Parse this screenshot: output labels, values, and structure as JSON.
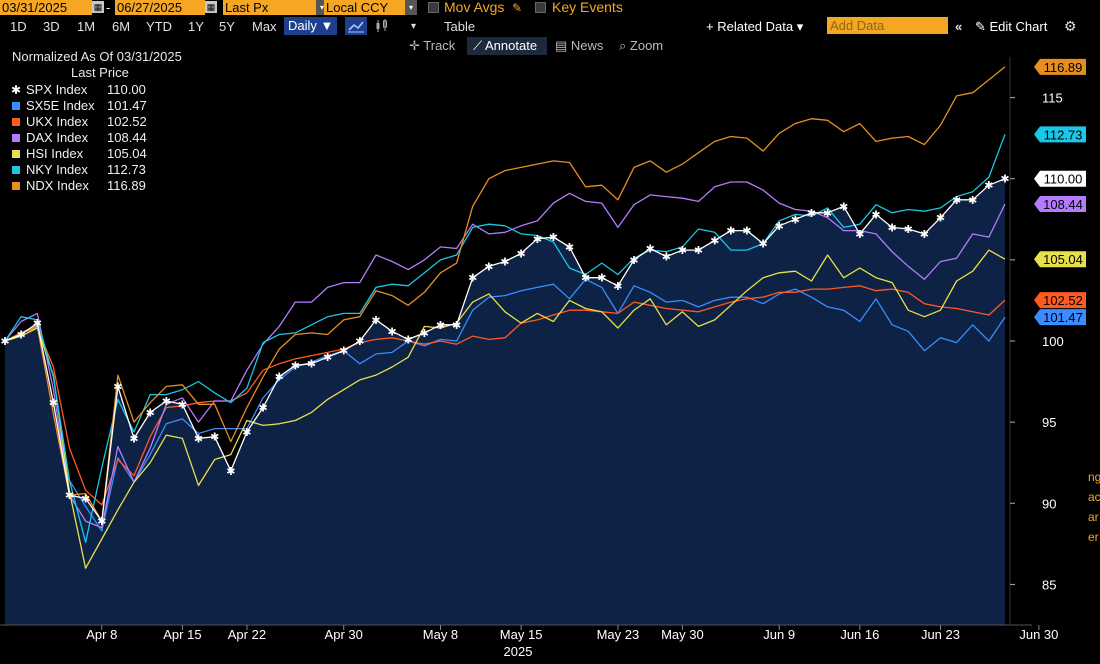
{
  "topbar": {
    "start_date": "03/31/2025",
    "end_date": "06/27/2025",
    "field": "Last Px",
    "currency": "Local CCY",
    "mov_avgs": "Mov Avgs",
    "key_events": "Key Events",
    "dash": "-"
  },
  "range_buttons": [
    "1D",
    "3D",
    "1M",
    "6M",
    "YTD",
    "1Y",
    "5Y",
    "Max"
  ],
  "frequency": "Daily",
  "table_label": "Table",
  "related_data": "Related Data",
  "add_data_placeholder": "Add Data",
  "edit_chart": "Edit Chart",
  "tools": {
    "track": "Track",
    "annotate": "Annotate",
    "news": "News",
    "zoom": "Zoom"
  },
  "legend": {
    "title": "Normalized As Of 03/31/2025",
    "subtitle": "Last Price"
  },
  "chart_data": {
    "type": "line",
    "title": "Normalized As Of 03/31/2025",
    "ylabel": "",
    "xlabel": "2025",
    "ylim": [
      82.5,
      117.5
    ],
    "yticks": [
      85,
      90,
      95,
      100,
      105,
      110,
      115
    ],
    "x_ticks": [
      "Apr 8",
      "Apr 15",
      "Apr 22",
      "Apr 30",
      "May 8",
      "May 15",
      "May 23",
      "May 30",
      "Jun 9",
      "Jun 16",
      "Jun 23",
      "Jun 30"
    ],
    "x_year": "2025",
    "x": [
      "03/31",
      "04/01",
      "04/02",
      "04/03",
      "04/04",
      "04/07",
      "04/08",
      "04/09",
      "04/10",
      "04/11",
      "04/14",
      "04/15",
      "04/16",
      "04/17",
      "04/21",
      "04/22",
      "04/23",
      "04/24",
      "04/25",
      "04/28",
      "04/29",
      "04/30",
      "05/01",
      "05/02",
      "05/05",
      "05/06",
      "05/07",
      "05/08",
      "05/09",
      "05/12",
      "05/13",
      "05/14",
      "05/15",
      "05/16",
      "05/19",
      "05/20",
      "05/21",
      "05/22",
      "05/23",
      "05/27",
      "05/28",
      "05/29",
      "05/30",
      "06/02",
      "06/03",
      "06/04",
      "06/05",
      "06/06",
      "06/09",
      "06/10",
      "06/11",
      "06/12",
      "06/13",
      "06/16",
      "06/17",
      "06/18",
      "06/19",
      "06/20",
      "06/23",
      "06/24",
      "06/25",
      "06/26",
      "06/27"
    ],
    "area_series": "SPX Index",
    "last_price_tags": true,
    "grid": false,
    "series": [
      {
        "name": "SPX Index",
        "color": "#ffffff",
        "marker": "star",
        "last": "110.00",
        "values": [
          100.0,
          100.4,
          101.1,
          96.2,
          90.5,
          90.3,
          88.9,
          97.2,
          94.0,
          95.6,
          96.3,
          96.1,
          94.0,
          94.1,
          92.0,
          94.4,
          95.9,
          97.8,
          98.5,
          98.6,
          99.0,
          99.4,
          100.0,
          101.3,
          100.6,
          100.1,
          100.5,
          101.0,
          101.0,
          103.9,
          104.6,
          104.9,
          105.4,
          106.3,
          106.4,
          105.8,
          103.9,
          103.9,
          103.4,
          105.0,
          105.7,
          105.2,
          105.6,
          105.6,
          106.2,
          106.8,
          106.8,
          106.0,
          107.1,
          107.5,
          107.9,
          107.9,
          108.3,
          106.6,
          107.8,
          107.0,
          106.9,
          106.6,
          107.6,
          108.7,
          108.7,
          109.6,
          110.0
        ]
      },
      {
        "name": "SX5E Index",
        "color": "#3a8cff",
        "last": "101.47",
        "values": [
          100.0,
          100.5,
          101.0,
          97.8,
          91.4,
          89.8,
          88.3,
          92.8,
          91.3,
          93.0,
          94.9,
          95.2,
          94.3,
          94.6,
          94.6,
          94.6,
          96.5,
          97.6,
          98.4,
          98.7,
          99.1,
          99.4,
          98.6,
          99.2,
          99.3,
          100.0,
          99.7,
          100.1,
          100.0,
          101.9,
          102.7,
          102.8,
          103.1,
          103.3,
          103.5,
          102.6,
          103.8,
          103.3,
          101.7,
          103.4,
          103.0,
          102.4,
          102.5,
          102.1,
          102.5,
          102.7,
          102.7,
          102.3,
          102.9,
          103.2,
          102.7,
          102.1,
          101.9,
          101.2,
          102.6,
          101.0,
          100.6,
          99.4,
          100.2,
          99.9,
          101.0,
          100.0,
          101.47
        ]
      },
      {
        "name": "UKX Index",
        "color": "#ff5a1f",
        "last": "102.52",
        "values": [
          100.0,
          100.5,
          100.8,
          98.4,
          93.4,
          90.8,
          89.9,
          92.7,
          91.7,
          94.1,
          95.9,
          96.0,
          96.2,
          96.3,
          96.3,
          96.8,
          98.2,
          98.6,
          98.9,
          99.1,
          99.3,
          99.5,
          99.9,
          100.1,
          100.2,
          100.0,
          99.8,
          100.0,
          99.8,
          100.3,
          100.1,
          100.2,
          101.1,
          101.3,
          101.6,
          101.9,
          101.9,
          101.8,
          101.7,
          102.4,
          102.2,
          102.0,
          101.9,
          101.8,
          102.1,
          102.4,
          102.6,
          102.7,
          103.0,
          103.0,
          103.2,
          103.2,
          103.3,
          103.4,
          103.1,
          103.2,
          103.0,
          102.3,
          102.1,
          102.0,
          101.8,
          101.6,
          102.52
        ]
      },
      {
        "name": "DAX Index",
        "color": "#b57bff",
        "last": "108.44",
        "values": [
          100.0,
          101.2,
          101.7,
          97.0,
          90.5,
          88.9,
          88.5,
          93.5,
          91.3,
          93.4,
          96.1,
          96.5,
          95.0,
          96.3,
          96.3,
          98.2,
          99.8,
          100.9,
          102.4,
          102.4,
          103.3,
          103.6,
          103.6,
          105.3,
          104.9,
          104.4,
          105.0,
          105.8,
          105.7,
          107.2,
          106.6,
          106.7,
          107.1,
          107.4,
          108.5,
          109.1,
          108.6,
          108.5,
          107.0,
          108.4,
          109.0,
          108.9,
          108.8,
          108.6,
          109.5,
          109.8,
          109.8,
          109.3,
          108.5,
          108.1,
          108.0,
          107.6,
          106.8,
          106.8,
          106.6,
          105.5,
          104.6,
          103.8,
          104.9,
          105.1,
          106.6,
          106.4,
          108.44
        ]
      },
      {
        "name": "HSI Index",
        "color": "#e8e04a",
        "last": "105.04",
        "values": [
          100.0,
          100.3,
          100.8,
          97.9,
          90.7,
          86.0,
          87.8,
          89.6,
          91.3,
          92.5,
          94.2,
          94.0,
          91.1,
          92.7,
          93.0,
          95.1,
          94.8,
          94.9,
          95.1,
          95.6,
          96.4,
          97.0,
          97.6,
          97.9,
          98.4,
          99.0,
          100.9,
          100.8,
          101.1,
          102.4,
          102.9,
          101.8,
          101.1,
          101.7,
          101.2,
          102.5,
          102.0,
          101.8,
          100.8,
          101.9,
          102.6,
          101.0,
          101.8,
          100.9,
          101.3,
          102.2,
          103.1,
          103.9,
          104.2,
          104.3,
          103.7,
          105.3,
          103.9,
          104.5,
          103.9,
          103.6,
          101.9,
          101.5,
          101.9,
          103.7,
          104.3,
          105.6,
          105.04
        ]
      },
      {
        "name": "NKY Index",
        "color": "#19c7e6",
        "last": "112.73",
        "values": [
          100.0,
          101.5,
          101.3,
          97.8,
          91.4,
          87.6,
          92.2,
          96.4,
          94.4,
          96.7,
          96.7,
          97.0,
          97.5,
          96.8,
          96.2,
          97.1,
          99.9,
          100.4,
          100.5,
          101.0,
          101.5,
          101.7,
          101.7,
          103.3,
          103.5,
          103.4,
          104.2,
          105.0,
          105.3,
          107.0,
          107.2,
          107.1,
          106.6,
          106.5,
          106.1,
          104.5,
          104.1,
          104.8,
          104.1,
          105.1,
          105.6,
          105.5,
          105.8,
          106.9,
          106.7,
          105.6,
          105.6,
          106.0,
          107.4,
          107.8,
          107.7,
          108.2,
          107.0,
          107.2,
          108.4,
          107.9,
          108.1,
          108.0,
          108.2,
          108.9,
          109.2,
          110.1,
          112.73
        ]
      },
      {
        "name": "NDX Index",
        "color": "#e58f22",
        "last": "116.89",
        "values": [
          100.0,
          100.5,
          100.9,
          95.5,
          90.5,
          90.6,
          88.9,
          97.9,
          95.0,
          96.2,
          97.2,
          97.3,
          96.1,
          96.1,
          93.8,
          95.9,
          97.8,
          99.5,
          100.4,
          100.5,
          100.4,
          101.3,
          101.5,
          103.1,
          102.8,
          102.2,
          103.0,
          104.2,
          104.8,
          108.3,
          110.0,
          110.5,
          110.7,
          110.9,
          111.1,
          111.0,
          109.5,
          109.6,
          108.7,
          110.7,
          111.1,
          110.4,
          110.9,
          111.6,
          112.3,
          112.6,
          112.5,
          111.7,
          112.8,
          113.4,
          113.7,
          113.6,
          112.9,
          113.4,
          112.3,
          112.5,
          112.6,
          112.1,
          113.3,
          115.1,
          115.3,
          116.1,
          116.89
        ]
      }
    ]
  },
  "edge": {
    "right_glyphs": [
      "ng",
      "ac",
      "ar",
      "er"
    ]
  }
}
